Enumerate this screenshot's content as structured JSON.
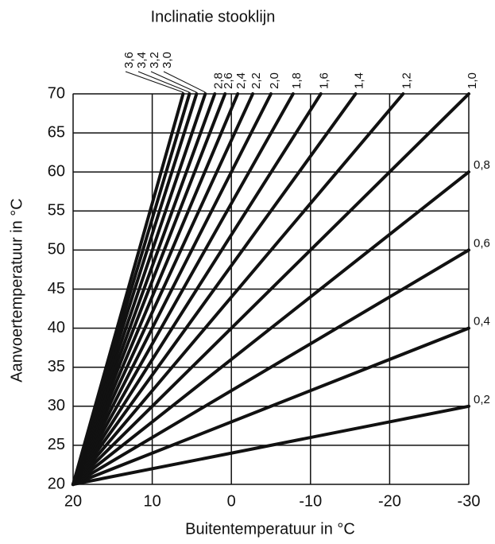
{
  "chart_data": {
    "type": "line",
    "title": "Inclinatie stooklijn",
    "xlabel": "Buitentemperatuur in °C",
    "ylabel": "Aanvoertemperatuur in °C",
    "xlim": [
      20,
      -30
    ],
    "ylim": [
      20,
      70
    ],
    "xticks": [
      20,
      10,
      0,
      -10,
      -20,
      -30
    ],
    "yticks": [
      20,
      25,
      30,
      35,
      40,
      45,
      50,
      55,
      60,
      65,
      70
    ],
    "grid": true,
    "color": "#111111",
    "series": [
      {
        "name": "0,2",
        "x": [
          20,
          -30
        ],
        "values": [
          20,
          30
        ]
      },
      {
        "name": "0,4",
        "x": [
          20,
          -30
        ],
        "values": [
          20,
          40
        ]
      },
      {
        "name": "0,6",
        "x": [
          20,
          -30
        ],
        "values": [
          20,
          50
        ]
      },
      {
        "name": "0,8",
        "x": [
          20,
          -30
        ],
        "values": [
          20,
          60
        ]
      },
      {
        "name": "1,0",
        "x": [
          20,
          -30
        ],
        "values": [
          20,
          70
        ]
      },
      {
        "name": "1,2",
        "x": [
          20,
          -21.7
        ],
        "values": [
          20,
          70
        ]
      },
      {
        "name": "1,4",
        "x": [
          20,
          -15.7
        ],
        "values": [
          20,
          70
        ]
      },
      {
        "name": "1,6",
        "x": [
          20,
          -11.3
        ],
        "values": [
          20,
          70
        ]
      },
      {
        "name": "1,8",
        "x": [
          20,
          -7.8
        ],
        "values": [
          20,
          70
        ]
      },
      {
        "name": "2,0",
        "x": [
          20,
          -5
        ],
        "values": [
          20,
          70
        ]
      },
      {
        "name": "2,2",
        "x": [
          20,
          -2.7
        ],
        "values": [
          20,
          70
        ]
      },
      {
        "name": "2,4",
        "x": [
          20,
          -0.8
        ],
        "values": [
          20,
          70
        ]
      },
      {
        "name": "2,6",
        "x": [
          20,
          0.8
        ],
        "values": [
          20,
          70
        ]
      },
      {
        "name": "2,8",
        "x": [
          20,
          2.1
        ],
        "values": [
          20,
          70
        ]
      },
      {
        "name": "3,0",
        "x": [
          20,
          3.3
        ],
        "values": [
          20,
          70
        ]
      },
      {
        "name": "3,2",
        "x": [
          20,
          4.4
        ],
        "values": [
          20,
          70
        ]
      },
      {
        "name": "3,4",
        "x": [
          20,
          5.3
        ],
        "values": [
          20,
          70
        ]
      },
      {
        "name": "3,6",
        "x": [
          20,
          6.1
        ],
        "values": [
          20,
          70
        ]
      }
    ]
  }
}
